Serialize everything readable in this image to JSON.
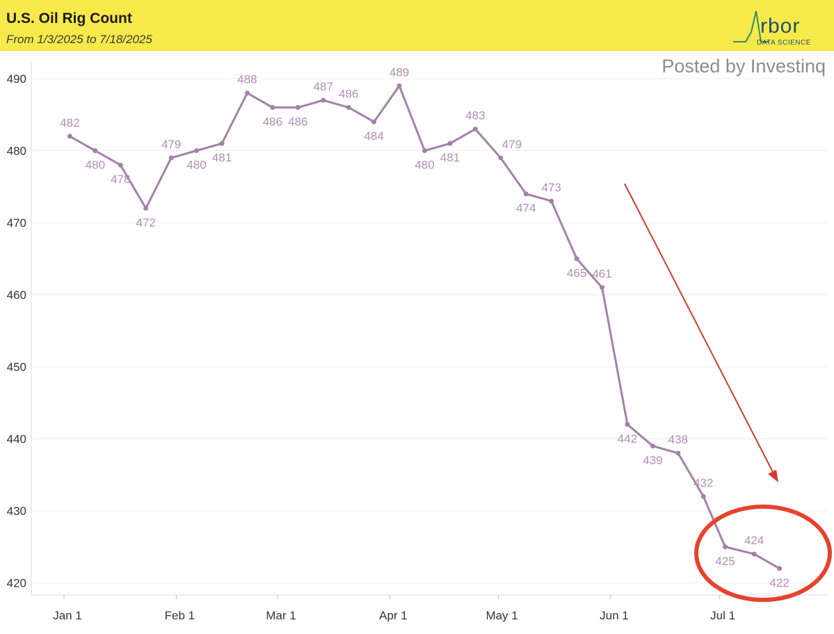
{
  "header": {
    "title": "U.S. Oil Rig Count",
    "subtitle": "From 1/3/2025 to 7/18/2025"
  },
  "logo": {
    "word": "rbor",
    "sub": "DATA SCIENCE"
  },
  "watermark": "Posted by Investinq",
  "colors": {
    "line": "#a57fab",
    "label": "#b48cb4",
    "header_bg": "#f8e94a",
    "arrow": "#d63a2a",
    "circle": "#e8422e"
  },
  "chart_data": {
    "type": "line",
    "title": "U.S. Oil Rig Count",
    "subtitle": "From 1/3/2025 to 7/18/2025",
    "xlabel": "",
    "ylabel": "",
    "ylim": [
      419,
      491
    ],
    "yticks": [
      420,
      430,
      440,
      450,
      460,
      470,
      480,
      490
    ],
    "xticks": [
      {
        "label": "Jan 1",
        "day": 0
      },
      {
        "label": "Feb 1",
        "day": 31
      },
      {
        "label": "Mar 1",
        "day": 59
      },
      {
        "label": "Apr 1",
        "day": 90
      },
      {
        "label": "May 1",
        "day": 120
      },
      {
        "label": "Jun 1",
        "day": 151
      },
      {
        "label": "Jul 1",
        "day": 181
      }
    ],
    "grid": true,
    "series": [
      {
        "name": "U.S. Oil Rig Count",
        "dates": [
          "1/3/2025",
          "1/10/2025",
          "1/17/2025",
          "1/24/2025",
          "1/31/2025",
          "2/7/2025",
          "2/14/2025",
          "2/21/2025",
          "2/28/2025",
          "3/7/2025",
          "3/14/2025",
          "3/21/2025",
          "3/28/2025",
          "4/4/2025",
          "4/11/2025",
          "4/18/2025",
          "4/25/2025",
          "5/2/2025",
          "5/9/2025",
          "5/16/2025",
          "5/23/2025",
          "5/30/2025",
          "6/6/2025",
          "6/13/2025",
          "6/20/2025",
          "6/27/2025",
          "7/3/2025",
          "7/11/2025",
          "7/18/2025"
        ],
        "days": [
          2,
          9,
          16,
          23,
          30,
          37,
          44,
          51,
          58,
          65,
          72,
          79,
          86,
          93,
          100,
          107,
          114,
          121,
          128,
          135,
          142,
          149,
          156,
          163,
          170,
          177,
          183,
          191,
          198
        ],
        "values": [
          482,
          480,
          478,
          472,
          479,
          480,
          481,
          488,
          486,
          486,
          487,
          486,
          484,
          489,
          480,
          481,
          483,
          479,
          474,
          473,
          465,
          461,
          442,
          439,
          438,
          432,
          425,
          424,
          422
        ],
        "labels": [
          "482",
          "480",
          "478",
          "472",
          "479",
          "480",
          "481",
          "488",
          "486",
          "486",
          "487",
          "486",
          "484",
          "489",
          "480",
          "481",
          "483",
          "479",
          "474",
          "473",
          "465",
          "461",
          "442",
          "439",
          "438",
          "432",
          "425",
          "424",
          "422"
        ],
        "label_pos": [
          "above",
          "below",
          "below",
          "below",
          "above",
          "below",
          "below",
          "above",
          "below",
          "below",
          "above",
          "above",
          "below",
          "above",
          "below",
          "below",
          "above",
          "right",
          "below",
          "above",
          "below",
          "above",
          "below",
          "below",
          "above",
          "above",
          "below",
          "above",
          "below"
        ]
      }
    ],
    "annotations": [
      {
        "type": "arrow",
        "description": "downward trend arrow"
      },
      {
        "type": "ellipse",
        "description": "highlight around latest values"
      }
    ]
  }
}
